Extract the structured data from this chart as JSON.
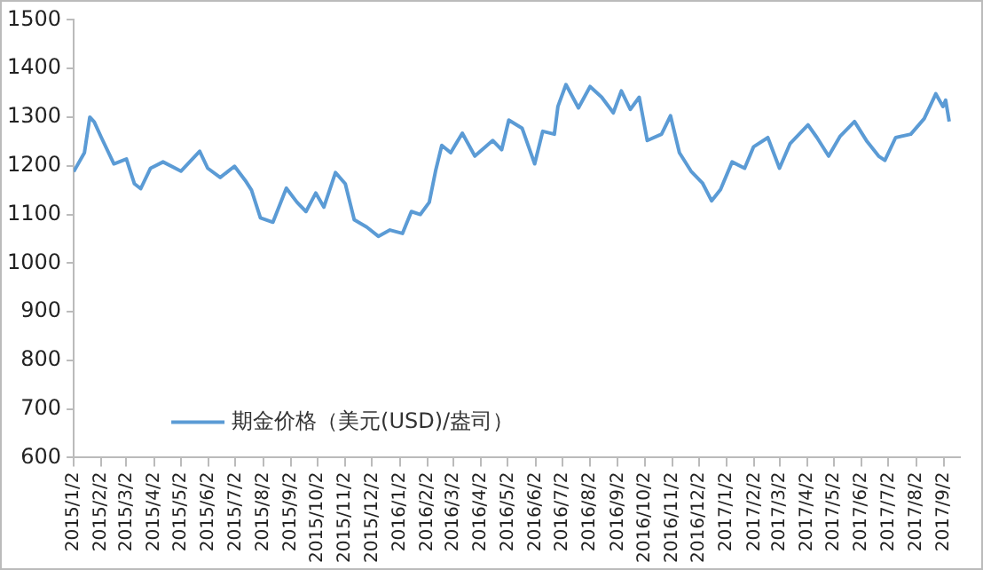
{
  "chart_data": {
    "type": "line",
    "legend": "bottom left",
    "grid": false,
    "marker": "none",
    "line_style": "solid",
    "x": [
      "2015-01-02",
      "2015-01-14",
      "2015-01-20",
      "2015-01-25",
      "2015-02-02",
      "2015-02-16",
      "2015-03-02",
      "2015-03-11",
      "2015-03-18",
      "2015-03-29",
      "2015-04-12",
      "2015-05-02",
      "2015-05-23",
      "2015-06-01",
      "2015-06-15",
      "2015-07-01",
      "2015-07-13",
      "2015-07-20",
      "2015-07-30",
      "2015-08-13",
      "2015-08-28",
      "2015-09-09",
      "2015-09-19",
      "2015-09-30",
      "2015-10-09",
      "2015-10-22",
      "2015-11-02",
      "2015-11-12",
      "2015-11-26",
      "2015-12-09",
      "2015-12-22",
      "2016-01-05",
      "2016-01-15",
      "2016-01-25",
      "2016-02-04",
      "2016-02-11",
      "2016-02-18",
      "2016-02-28",
      "2016-03-12",
      "2016-03-26",
      "2016-04-15",
      "2016-04-25",
      "2016-05-03",
      "2016-05-18",
      "2016-06-01",
      "2016-06-10",
      "2016-06-23",
      "2016-06-27",
      "2016-07-06",
      "2016-07-20",
      "2016-08-02",
      "2016-08-15",
      "2016-08-28",
      "2016-09-06",
      "2016-09-16",
      "2016-09-26",
      "2016-10-05",
      "2016-10-21",
      "2016-10-31",
      "2016-11-10",
      "2016-11-23",
      "2016-12-06",
      "2016-12-16",
      "2016-12-26",
      "2017-01-08",
      "2017-01-22",
      "2017-02-01",
      "2017-02-17",
      "2017-03-02",
      "2017-03-14",
      "2017-04-03",
      "2017-04-13",
      "2017-04-26",
      "2017-05-09",
      "2017-05-25",
      "2017-06-08",
      "2017-06-21",
      "2017-06-28",
      "2017-07-10",
      "2017-07-27",
      "2017-08-11",
      "2017-08-24",
      "2017-09-01",
      "2017-09-04",
      "2017-09-08"
    ],
    "series": [
      {
        "name": "期金价格（美元(USD)/盎司）",
        "color": "#5b9bd5",
        "values": [
          1188,
          1227,
          1300,
          1290,
          1258,
          1204,
          1214,
          1163,
          1153,
          1195,
          1208,
          1189,
          1230,
          1195,
          1176,
          1199,
          1170,
          1150,
          1093,
          1084,
          1154,
          1125,
          1106,
          1144,
          1115,
          1186,
          1163,
          1089,
          1074,
          1055,
          1068,
          1061,
          1106,
          1100,
          1125,
          1189,
          1242,
          1227,
          1267,
          1220,
          1252,
          1233,
          1294,
          1277,
          1204,
          1271,
          1265,
          1322,
          1367,
          1319,
          1363,
          1341,
          1309,
          1354,
          1316,
          1341,
          1252,
          1265,
          1303,
          1227,
          1189,
          1164,
          1128,
          1151,
          1208,
          1195,
          1239,
          1258,
          1195,
          1246,
          1284,
          1258,
          1220,
          1261,
          1291,
          1250,
          1220,
          1211,
          1258,
          1265,
          1297,
          1348,
          1322,
          1335,
          1291
        ]
      }
    ],
    "ylim": [
      600,
      1500
    ],
    "yticks": [
      600,
      700,
      800,
      900,
      1000,
      1100,
      1200,
      1300,
      1400,
      1500
    ],
    "xlim": [
      "2015-01-02",
      "2017-09-20"
    ],
    "xticks": [
      {
        "value": "2015-01-02",
        "label": "2015/1/2"
      },
      {
        "value": "2015-02-02",
        "label": "2015/2/2"
      },
      {
        "value": "2015-03-02",
        "label": "2015/3/2"
      },
      {
        "value": "2015-04-02",
        "label": "2015/4/2"
      },
      {
        "value": "2015-05-02",
        "label": "2015/5/2"
      },
      {
        "value": "2015-06-02",
        "label": "2015/6/2"
      },
      {
        "value": "2015-07-02",
        "label": "2015/7/2"
      },
      {
        "value": "2015-08-02",
        "label": "2015/8/2"
      },
      {
        "value": "2015-09-02",
        "label": "2015/9/2"
      },
      {
        "value": "2015-10-02",
        "label": "2015/10/2"
      },
      {
        "value": "2015-11-02",
        "label": "2015/11/2"
      },
      {
        "value": "2015-12-02",
        "label": "2015/12/2"
      },
      {
        "value": "2016-01-02",
        "label": "2016/1/2"
      },
      {
        "value": "2016-02-02",
        "label": "2016/2/2"
      },
      {
        "value": "2016-03-02",
        "label": "2016/3/2"
      },
      {
        "value": "2016-04-02",
        "label": "2016/4/2"
      },
      {
        "value": "2016-05-02",
        "label": "2016/5/2"
      },
      {
        "value": "2016-06-02",
        "label": "2016/6/2"
      },
      {
        "value": "2016-07-02",
        "label": "2016/7/2"
      },
      {
        "value": "2016-08-02",
        "label": "2016/8/2"
      },
      {
        "value": "2016-09-02",
        "label": "2016/9/2"
      },
      {
        "value": "2016-10-02",
        "label": "2016/10/2"
      },
      {
        "value": "2016-11-02",
        "label": "2016/11/2"
      },
      {
        "value": "2016-12-02",
        "label": "2016/12/2"
      },
      {
        "value": "2017-01-02",
        "label": "2017/1/2"
      },
      {
        "value": "2017-02-02",
        "label": "2017/2/2"
      },
      {
        "value": "2017-03-02",
        "label": "2017/3/2"
      },
      {
        "value": "2017-04-02",
        "label": "2017/4/2"
      },
      {
        "value": "2017-05-02",
        "label": "2017/5/2"
      },
      {
        "value": "2017-06-02",
        "label": "2017/6/2"
      },
      {
        "value": "2017-07-02",
        "label": "2017/7/2"
      },
      {
        "value": "2017-08-02",
        "label": "2017/8/2"
      },
      {
        "value": "2017-09-02",
        "label": "2017/9/2"
      }
    ]
  }
}
